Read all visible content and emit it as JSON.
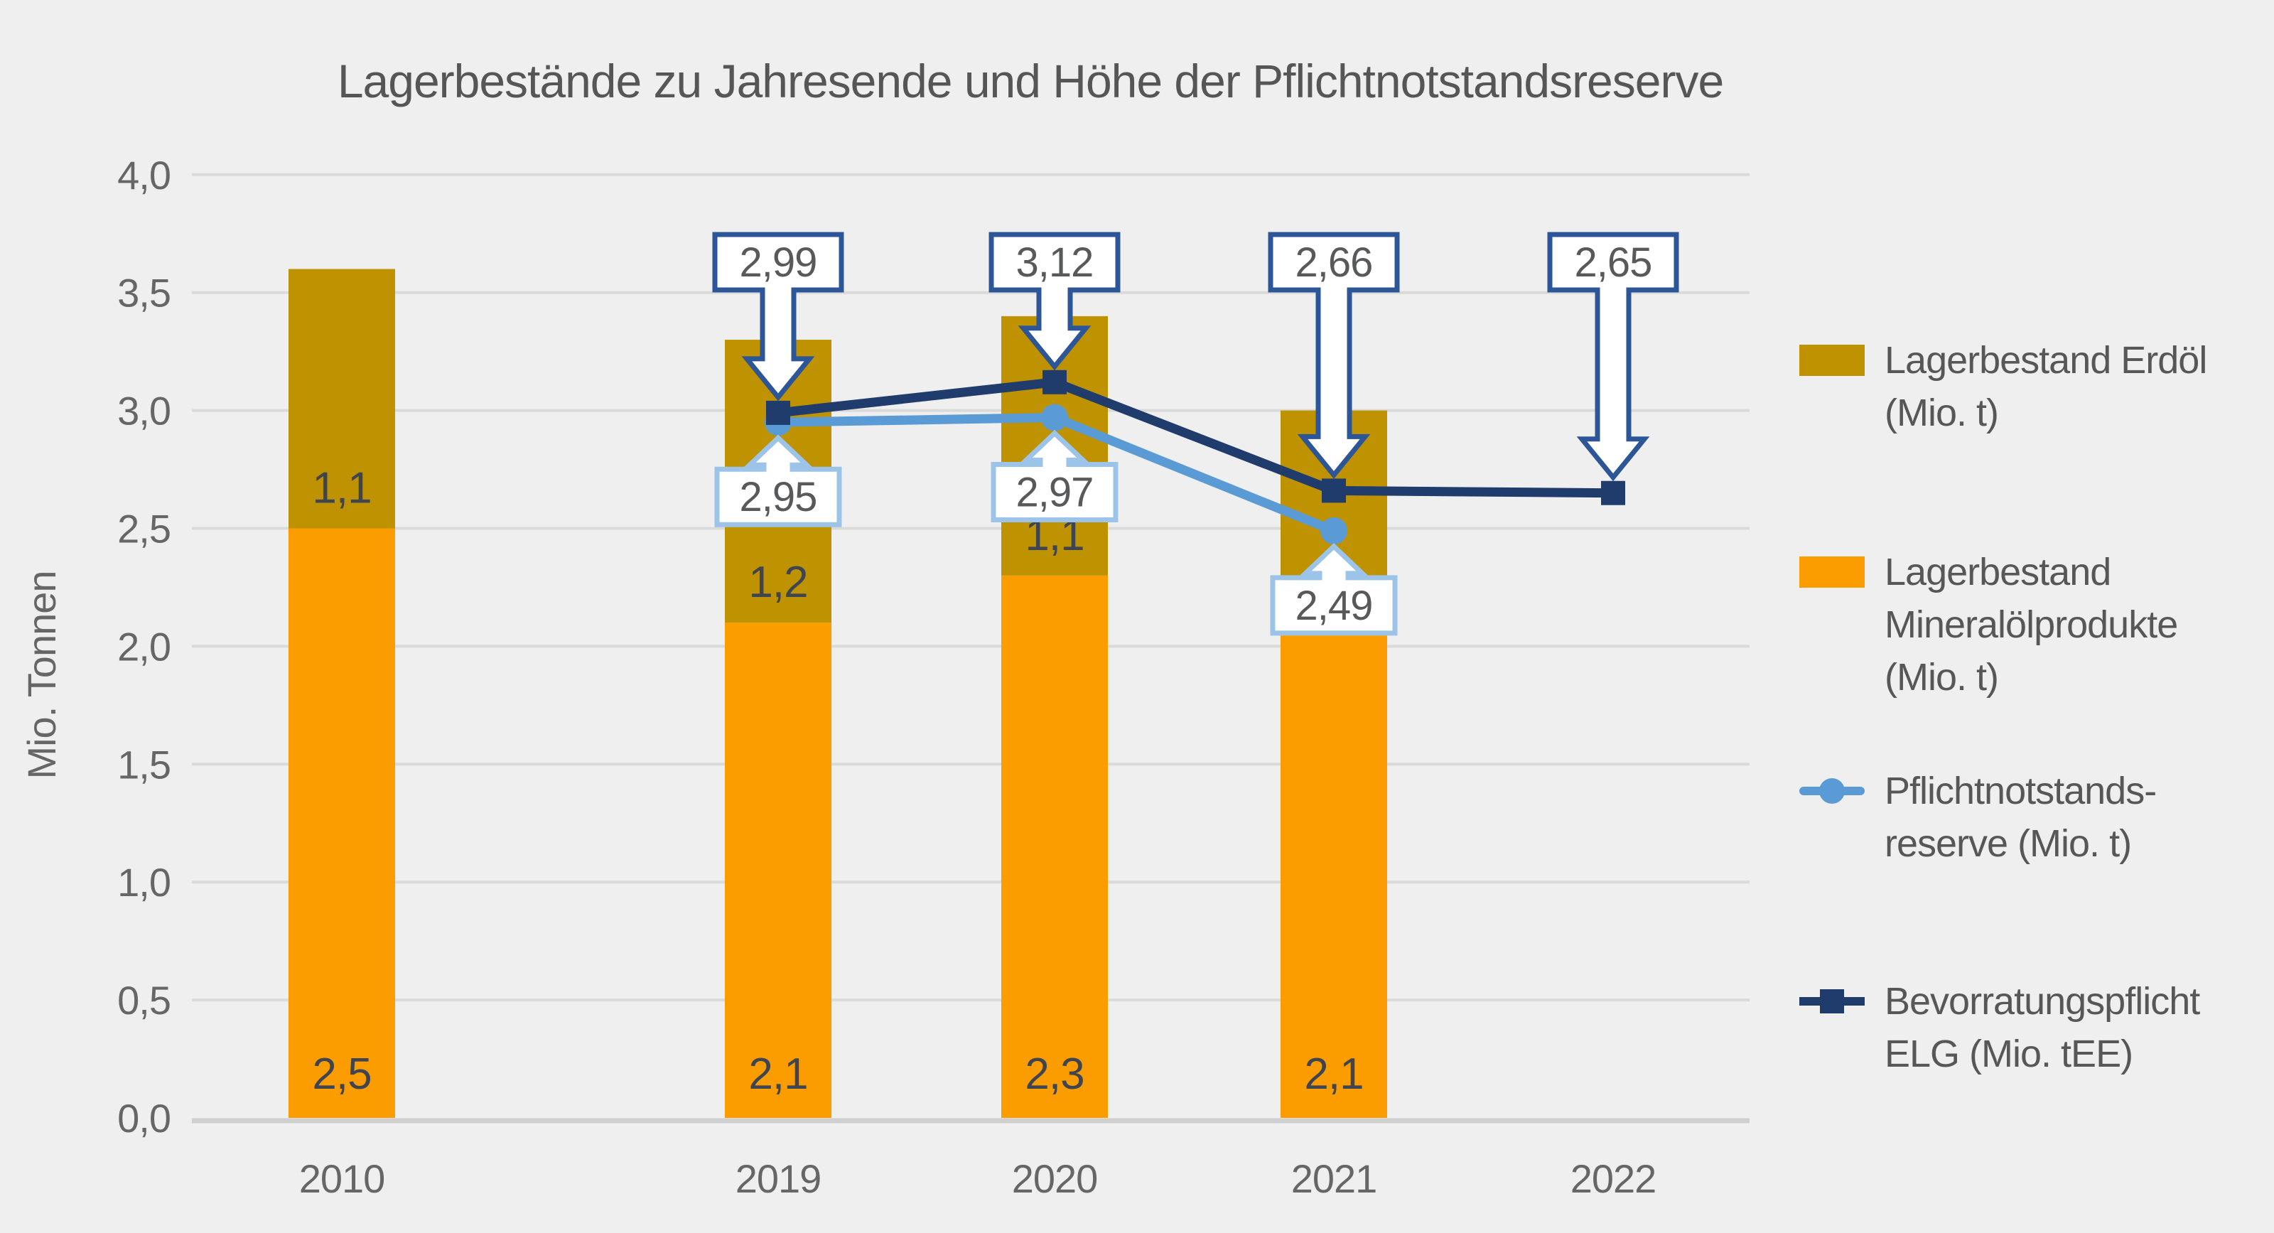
{
  "title": "Lagerbestände zu Jahresende und Höhe der  Pflichtnotstandsreserve",
  "colors": {
    "background": "#F0EFEF",
    "grid": "#DBDADA",
    "axis_line": "#D0CFCF",
    "title_text": "#565656",
    "axis_text": "#666666",
    "bar_label_text": "#3E4551",
    "callout_text": "#58595B",
    "legend_text": "#575757",
    "erdoel": "#BE9200",
    "mineraloel": "#FB9D00",
    "reserve_blue": "#5B9BD5",
    "elg_navy": "#1F3C6C",
    "callout_border_navy": "#2C5697",
    "callout_border_blue": "#9CC4E9",
    "callout_fill": "#FFFFFF"
  },
  "legend": {
    "items": [
      {
        "swatch": "bar-olive",
        "lines": [
          "Lagerbestand Erdöl",
          "(Mio. t)"
        ]
      },
      {
        "swatch": "bar-orange",
        "lines": [
          "Lagerbestand",
          "Mineralölprodukte",
          "(Mio. t)"
        ]
      },
      {
        "swatch": "line-circle-blue",
        "lines": [
          "Pflichtnotstands-",
          "reserve (Mio. t)"
        ]
      },
      {
        "swatch": "line-square-navy",
        "lines": [
          "Bevorratungspflicht",
          "ELG (Mio. tEE)"
        ]
      }
    ]
  },
  "chart_data": {
    "type": "bar",
    "subtype": "stacked-bar-with-lines",
    "title": "Lagerbestände zu Jahresende und Höhe der  Pflichtnotstandsreserve",
    "xlabel": "",
    "ylabel": "Mio. Tonnen",
    "categories": [
      "2010",
      "2019",
      "2020",
      "2021",
      "2022"
    ],
    "y_axis": {
      "min": 0,
      "max": 4,
      "step": 0.5,
      "tick_labels": [
        "0,0",
        "0,5",
        "1,0",
        "1,5",
        "2,0",
        "2,5",
        "3,0",
        "3,5",
        "4,0"
      ]
    },
    "grid": true,
    "legend_position": "right",
    "bar_series": [
      {
        "id": "mineraloel",
        "name": "Lagerbestand Mineralölprodukte (Mio. t)",
        "color_key": "mineraloel",
        "values": [
          2.5,
          2.1,
          2.3,
          2.1,
          null
        ],
        "labels": [
          "2,5",
          "2,1",
          "2,3",
          "2,1",
          null
        ]
      },
      {
        "id": "erdoel",
        "name": "Lagerbestand Erdöl (Mio. t)",
        "color_key": "erdoel",
        "values": [
          1.1,
          1.2,
          1.1,
          0.9,
          null
        ],
        "labels": [
          "1,1",
          "1,2",
          "1,1",
          null,
          null
        ]
      }
    ],
    "line_series": [
      {
        "id": "reserve",
        "name": "Pflichtnotstandsreserve (Mio. t)",
        "color_key": "reserve_blue",
        "marker": "circle",
        "callout_dir": "up",
        "callout_border_key": "callout_border_blue",
        "values": [
          null,
          2.95,
          2.97,
          2.49,
          null
        ],
        "callout_labels": [
          null,
          "2,95",
          "2,97",
          "2,49",
          null
        ]
      },
      {
        "id": "elg",
        "name": "Bevorratungspflicht ELG (Mio. tEE)",
        "color_key": "elg_navy",
        "marker": "square",
        "callout_dir": "down",
        "callout_border_key": "callout_border_navy",
        "values": [
          null,
          2.99,
          3.12,
          2.66,
          2.65
        ],
        "callout_labels": [
          null,
          "2,99",
          "3,12",
          "2,66",
          "2,65"
        ]
      }
    ]
  }
}
